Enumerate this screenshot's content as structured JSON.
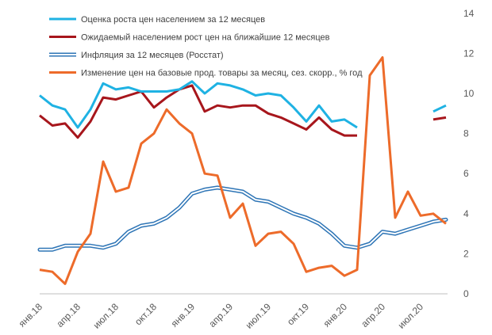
{
  "chart_data": {
    "type": "line",
    "title": "",
    "xlabel": "",
    "ylabel": "",
    "ylim": [
      0,
      14
    ],
    "yticks": [
      0,
      2,
      4,
      6,
      8,
      10,
      12,
      14
    ],
    "y_axis_position": "right",
    "grid": false,
    "legend_position": "top-left",
    "x": [
      "2018-01",
      "2018-02",
      "2018-03",
      "2018-04",
      "2018-05",
      "2018-06",
      "2018-07",
      "2018-08",
      "2018-09",
      "2018-10",
      "2018-11",
      "2018-12",
      "2019-01",
      "2019-02",
      "2019-03",
      "2019-04",
      "2019-05",
      "2019-06",
      "2019-07",
      "2019-08",
      "2019-09",
      "2019-10",
      "2019-11",
      "2019-12",
      "2020-01",
      "2020-02",
      "2020-03",
      "2020-04",
      "2020-05",
      "2020-06",
      "2020-07",
      "2020-08",
      "2020-09"
    ],
    "xtick_labels": [
      {
        "x": "2018-01",
        "label": "янв.18"
      },
      {
        "x": "2018-04",
        "label": "апр.18"
      },
      {
        "x": "2018-07",
        "label": "июл.18"
      },
      {
        "x": "2018-10",
        "label": "окт.18"
      },
      {
        "x": "2019-01",
        "label": "янв.19"
      },
      {
        "x": "2019-04",
        "label": "апр.19"
      },
      {
        "x": "2019-07",
        "label": "июл.19"
      },
      {
        "x": "2019-10",
        "label": "окт.19"
      },
      {
        "x": "2020-01",
        "label": "янв.20"
      },
      {
        "x": "2020-04",
        "label": "апр.20"
      },
      {
        "x": "2020-07",
        "label": "июл.20"
      }
    ],
    "series": [
      {
        "name": "Оценка роста цен населением за 12 месяцев",
        "color": "#1fb2e3",
        "style": "solid",
        "width": 3,
        "values": [
          9.9,
          9.4,
          9.2,
          8.3,
          9.2,
          10.5,
          10.2,
          10.3,
          10.1,
          10.1,
          10.1,
          10.2,
          10.6,
          10.0,
          10.5,
          10.4,
          10.2,
          9.9,
          10.0,
          9.9,
          9.3,
          8.6,
          9.4,
          8.6,
          8.7,
          8.3,
          null,
          null,
          null,
          null,
          null,
          9.1,
          9.4
        ]
      },
      {
        "name": "Ожидаемый населением рост цен на ближайшие 12 месяцев",
        "color": "#a7161c",
        "style": "solid",
        "width": 3,
        "values": [
          8.9,
          8.4,
          8.5,
          7.8,
          8.6,
          9.8,
          9.7,
          9.9,
          10.1,
          9.3,
          9.8,
          10.2,
          10.4,
          9.1,
          9.4,
          9.3,
          9.4,
          9.4,
          9.0,
          8.8,
          8.5,
          8.2,
          8.8,
          8.2,
          7.9,
          7.9,
          null,
          null,
          null,
          null,
          null,
          8.7,
          8.8
        ]
      },
      {
        "name": "Инфляция за 12 месяцев (Росстат)",
        "color": "#2e75b6",
        "style": "double",
        "width": 2,
        "values": [
          2.2,
          2.2,
          2.4,
          2.4,
          2.4,
          2.3,
          2.5,
          3.1,
          3.4,
          3.5,
          3.8,
          4.3,
          5.0,
          5.2,
          5.3,
          5.2,
          5.1,
          4.7,
          4.6,
          4.3,
          4.0,
          3.8,
          3.5,
          3.0,
          2.4,
          2.3,
          2.5,
          3.1,
          3.0,
          3.2,
          3.4,
          3.6,
          3.7
        ]
      },
      {
        "name": "Изменение цен на базовые прод. товары за месяц, сез. скорр., % год",
        "color": "#ed6b2a",
        "style": "solid",
        "width": 3,
        "values": [
          1.2,
          1.1,
          0.5,
          2.1,
          3.0,
          6.6,
          5.1,
          5.3,
          7.5,
          8.0,
          9.2,
          8.5,
          8.0,
          6.0,
          5.9,
          3.8,
          4.5,
          2.4,
          3.0,
          3.1,
          2.5,
          1.1,
          1.3,
          1.4,
          0.9,
          1.2,
          10.9,
          11.8,
          3.8,
          5.1,
          3.9,
          4.0,
          3.5
        ]
      }
    ]
  }
}
